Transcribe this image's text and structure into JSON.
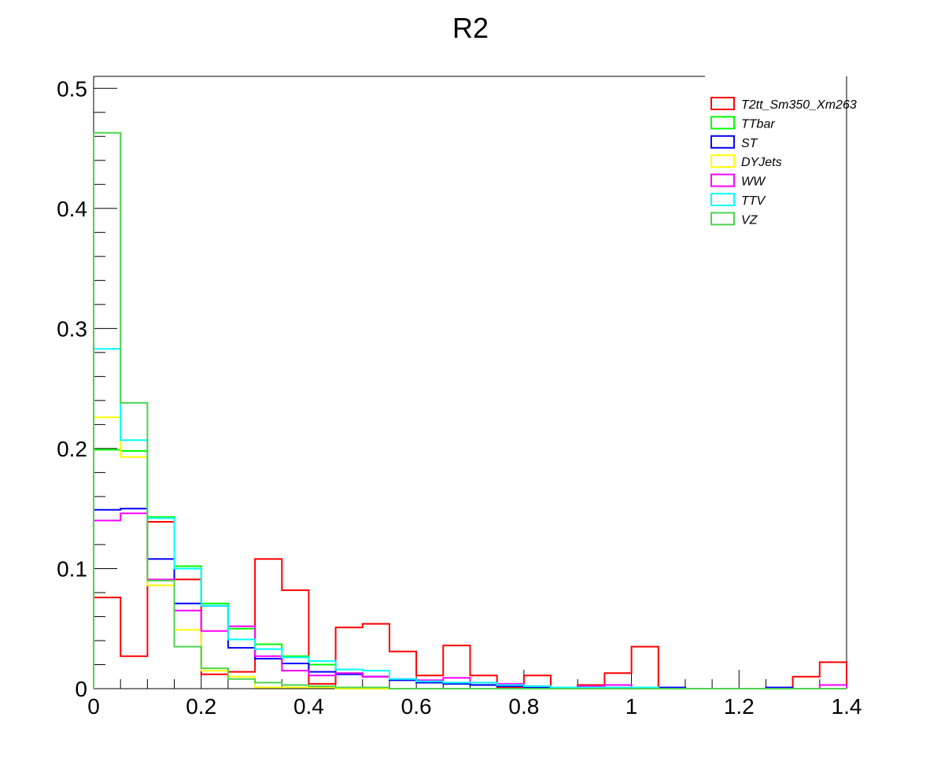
{
  "chart_data": {
    "type": "histogram",
    "title": "R2",
    "xlabel": "",
    "ylabel": "",
    "xlim": [
      0,
      1.4
    ],
    "ylim": [
      0,
      0.51
    ],
    "bin_edges": [
      0,
      0.05,
      0.1,
      0.15,
      0.2,
      0.25,
      0.3,
      0.35,
      0.4,
      0.45,
      0.5,
      0.55,
      0.6,
      0.65,
      0.7,
      0.75,
      0.8,
      0.85,
      0.9,
      0.95,
      1.0,
      1.05,
      1.1,
      1.15,
      1.2,
      1.25,
      1.3,
      1.35,
      1.4
    ],
    "x_ticks": [
      {
        "value": 0,
        "label": "0"
      },
      {
        "value": 0.2,
        "label": "0.2"
      },
      {
        "value": 0.4,
        "label": "0.4"
      },
      {
        "value": 0.6,
        "label": "0.6"
      },
      {
        "value": 0.8,
        "label": "0.8"
      },
      {
        "value": 1.0,
        "label": "1"
      },
      {
        "value": 1.2,
        "label": "1.2"
      },
      {
        "value": 1.4,
        "label": "1.4"
      }
    ],
    "y_ticks": [
      {
        "value": 0,
        "label": "0"
      },
      {
        "value": 0.1,
        "label": "0.1"
      },
      {
        "value": 0.2,
        "label": "0.2"
      },
      {
        "value": 0.3,
        "label": "0.3"
      },
      {
        "value": 0.4,
        "label": "0.4"
      },
      {
        "value": 0.5,
        "label": "0.5"
      }
    ],
    "grid": false,
    "legend_position": "top-right",
    "series": [
      {
        "name": "T2tt_Sm350_Xm263",
        "color": "#ff0000",
        "values": [
          0.076,
          0.027,
          0.139,
          0.091,
          0.012,
          0.014,
          0.108,
          0.082,
          0.004,
          0.051,
          0.054,
          0.031,
          0.011,
          0.036,
          0.011,
          0.001,
          0.011,
          0.0,
          0.003,
          0.013,
          0.035,
          0.0,
          0.0,
          0.0,
          0.0,
          0.0,
          0.01,
          0.022
        ]
      },
      {
        "name": "TTbar",
        "color": "#00ff00",
        "values": [
          0.199,
          0.198,
          0.143,
          0.102,
          0.071,
          0.05,
          0.037,
          0.027,
          0.02,
          0.013,
          0.01,
          0.007,
          0.005,
          0.004,
          0.003,
          0.002,
          0.002,
          0.001,
          0.001,
          0.001,
          0.001,
          0.001,
          0.0,
          0.0,
          0.0,
          0.0,
          0.0,
          0.0
        ]
      },
      {
        "name": "ST",
        "color": "#0000ff",
        "values": [
          0.149,
          0.15,
          0.108,
          0.071,
          0.069,
          0.034,
          0.025,
          0.021,
          0.014,
          0.012,
          0.01,
          0.007,
          0.005,
          0.004,
          0.003,
          0.002,
          0.001,
          0.001,
          0.001,
          0.001,
          0.001,
          0.001,
          0.0,
          0.0,
          0.0,
          0.001,
          0.0,
          0.0
        ]
      },
      {
        "name": "DYJets",
        "color": "#ffff00",
        "values": [
          0.226,
          0.193,
          0.086,
          0.049,
          0.015,
          0.01,
          0.001,
          0.001,
          0.001,
          0.0,
          0.0,
          0.0,
          0.0,
          0.0,
          0.0,
          0.0,
          0.0,
          0.0,
          0.0,
          0.0,
          0.0,
          0.0,
          0.0,
          0.0,
          0.0,
          0.0,
          0.0,
          0.0
        ]
      },
      {
        "name": "WW",
        "color": "#ff00ff",
        "values": [
          0.14,
          0.146,
          0.091,
          0.065,
          0.048,
          0.052,
          0.027,
          0.015,
          0.011,
          0.013,
          0.01,
          0.008,
          0.007,
          0.009,
          0.005,
          0.004,
          0.002,
          0.001,
          0.002,
          0.003,
          0.0,
          0.0,
          0.0,
          0.0,
          0.0,
          0.0,
          0.0,
          0.003
        ]
      },
      {
        "name": "TTV",
        "color": "#00ffff",
        "values": [
          0.283,
          0.207,
          0.142,
          0.1,
          0.069,
          0.041,
          0.033,
          0.026,
          0.023,
          0.016,
          0.015,
          0.008,
          0.006,
          0.005,
          0.005,
          0.003,
          0.002,
          0.001,
          0.001,
          0.001,
          0.001,
          0.0,
          0.0,
          0.0,
          0.0,
          0.0,
          0.0,
          0.0
        ]
      },
      {
        "name": "VZ",
        "color": "#4dd24d",
        "values": [
          0.463,
          0.238,
          0.09,
          0.035,
          0.017,
          0.008,
          0.005,
          0.003,
          0.002,
          0.001,
          0.001,
          0.0,
          0.0,
          0.0,
          0.0,
          0.0,
          0.0,
          0.0,
          0.0,
          0.0,
          0.0,
          0.0,
          0.0,
          0.0,
          0.0,
          0.0,
          0.0,
          0.0
        ]
      }
    ]
  }
}
